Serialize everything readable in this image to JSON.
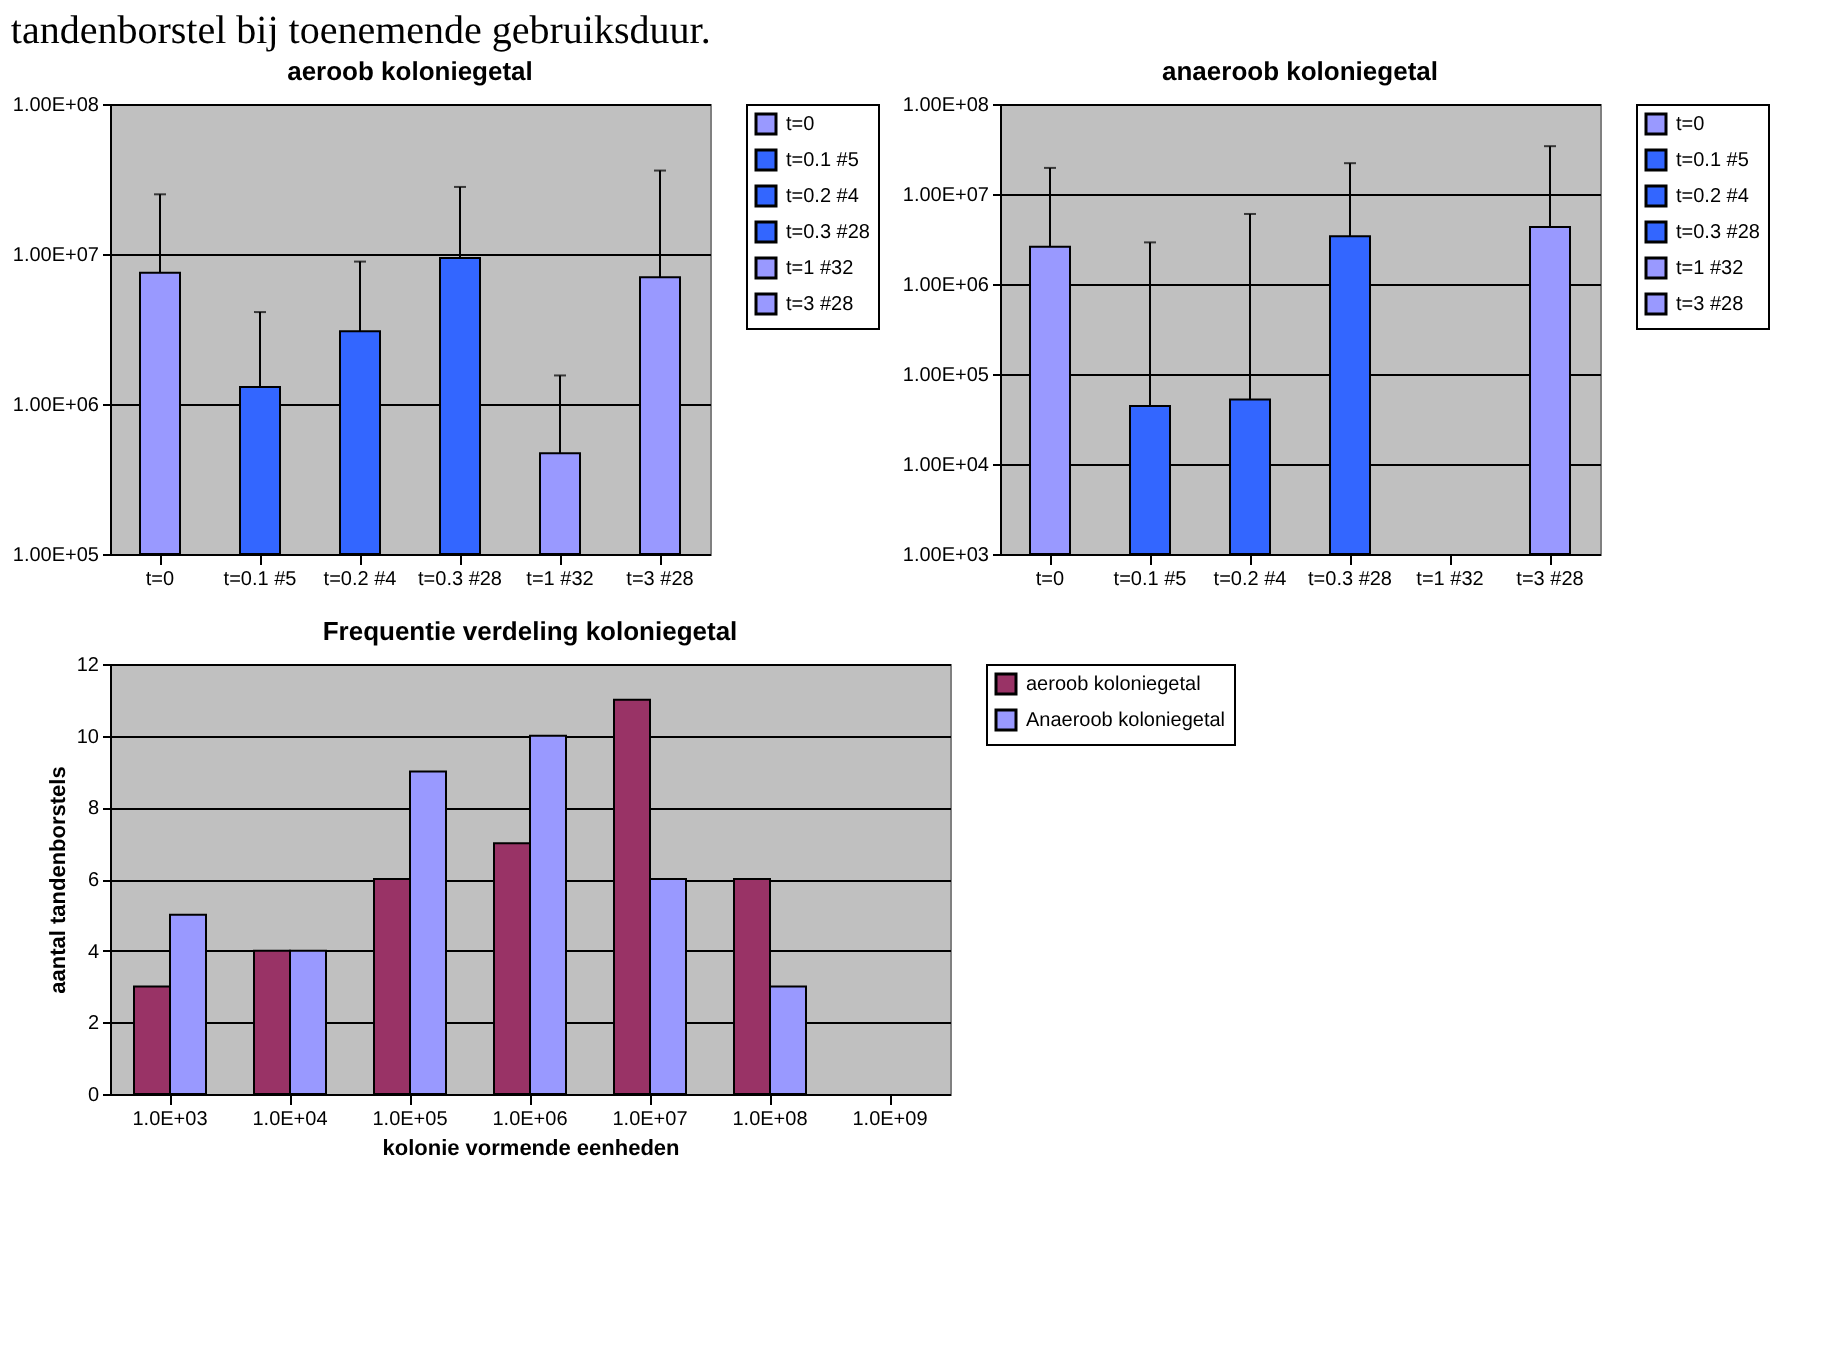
{
  "chart_data": [
    {
      "type": "bar",
      "title": "aeroob koloniegetal",
      "annotations": [
        "tandenborstel bij toenemende gebruiksduur."
      ],
      "categories": [
        "t=0",
        "t=0.1 #5",
        "t=0.2 #4",
        "t=0.3 #28",
        "t=1 #32",
        "t=3 #28"
      ],
      "series": [
        {
          "name": "t=0",
          "color": "#9999ff",
          "values": [
            7500000,
            null,
            null,
            null,
            null,
            null
          ],
          "errors": [
            [
              7500000,
              25000000
            ],
            null,
            null,
            null,
            null,
            null
          ]
        },
        {
          "name": "t=0.1 #5",
          "color": "#3366ff",
          "values": [
            null,
            1300000,
            null,
            null,
            null,
            null
          ],
          "errors": [
            null,
            [
              1300000,
              4100000
            ],
            null,
            null,
            null,
            null
          ]
        },
        {
          "name": "t=0.2 #4",
          "color": "#3366ff",
          "values": [
            null,
            null,
            3050000,
            null,
            null,
            null
          ],
          "errors": [
            null,
            null,
            [
              3050000,
              8900000
            ],
            null,
            null,
            null
          ]
        },
        {
          "name": "t=0.3 #28",
          "color": "#3366ff",
          "values": [
            null,
            null,
            null,
            9400000,
            null,
            null
          ],
          "errors": [
            null,
            null,
            null,
            [
              9400000,
              28000000
            ],
            null,
            null
          ]
        },
        {
          "name": "t=1 #32",
          "color": "#9999ff",
          "values": [
            null,
            null,
            null,
            null,
            470000,
            null
          ],
          "errors": [
            null,
            null,
            null,
            null,
            [
              470000,
              1550000
            ],
            null
          ]
        },
        {
          "name": "t=3 #28",
          "color": "#9999ff",
          "values": [
            null,
            null,
            null,
            null,
            null,
            7000000
          ],
          "errors": [
            null,
            null,
            null,
            null,
            null,
            [
              7000000,
              36000000
            ]
          ]
        }
      ],
      "log": true,
      "ylim": [
        100000,
        100000000
      ],
      "yticks": [
        {
          "value": 100000,
          "label": "1.00E+05"
        },
        {
          "value": 1000000,
          "label": "1.00E+06"
        },
        {
          "value": 10000000,
          "label": "1.00E+07"
        },
        {
          "value": 100000000,
          "label": "1.00E+08"
        }
      ],
      "grid": "y",
      "legend": "right"
    },
    {
      "type": "bar",
      "title": "anaeroob koloniegetal",
      "categories": [
        "t=0",
        "t=0.1 #5",
        "t=0.2 #4",
        "t=0.3 #28",
        "t=1 #32",
        "t=3 #28"
      ],
      "series": [
        {
          "name": "t=0",
          "color": "#9999ff",
          "values": [
            2600000,
            null,
            null,
            null,
            null,
            null
          ],
          "errors": [
            [
              2600000,
              19500000
            ],
            null,
            null,
            null,
            null,
            null
          ]
        },
        {
          "name": "t=0.1 #5",
          "color": "#3366ff",
          "values": [
            null,
            44000,
            null,
            null,
            null,
            null
          ],
          "errors": [
            null,
            [
              44000,
              2900000
            ],
            null,
            null,
            null,
            null
          ]
        },
        {
          "name": "t=0.2 #4",
          "color": "#3366ff",
          "values": [
            null,
            null,
            52000,
            null,
            null,
            null
          ],
          "errors": [
            null,
            null,
            [
              52000,
              6000000
            ],
            null,
            null,
            null
          ]
        },
        {
          "name": "t=0.3 #28",
          "color": "#3366ff",
          "values": [
            null,
            null,
            null,
            3400000,
            null,
            null
          ],
          "errors": [
            null,
            null,
            null,
            [
              3400000,
              22000000
            ],
            null,
            null
          ]
        },
        {
          "name": "t=1 #32",
          "color": "#9999ff",
          "values": [
            null,
            null,
            null,
            null,
            null,
            null
          ]
        },
        {
          "name": "t=3 #28",
          "color": "#9999ff",
          "values": [
            null,
            null,
            null,
            null,
            null,
            4300000
          ],
          "errors": [
            null,
            null,
            null,
            null,
            null,
            [
              4300000,
              34000000
            ]
          ]
        }
      ],
      "log": true,
      "ylim": [
        1000,
        100000000
      ],
      "yticks": [
        {
          "value": 1000,
          "label": "1.00E+03"
        },
        {
          "value": 10000,
          "label": "1.00E+04"
        },
        {
          "value": 100000,
          "label": "1.00E+05"
        },
        {
          "value": 1000000,
          "label": "1.00E+06"
        },
        {
          "value": 10000000,
          "label": "1.00E+07"
        },
        {
          "value": 100000000,
          "label": "1.00E+08"
        }
      ],
      "grid": "y",
      "legend": "right"
    },
    {
      "type": "bar",
      "title": "Frequentie verdeling koloniegetal",
      "xlabel": "kolonie vormende eenheden",
      "ylabel": "aantal tandenborstels",
      "categories": [
        "1.0E+03",
        "1.0E+04",
        "1.0E+05",
        "1.0E+06",
        "1.0E+07",
        "1.0E+08",
        "1.0E+09"
      ],
      "series": [
        {
          "name": "aeroob koloniegetal",
          "color": "#993366",
          "values": [
            3,
            4,
            6,
            7,
            11,
            6,
            null
          ]
        },
        {
          "name": "Anaeroob koloniegetal",
          "color": "#9999ff",
          "values": [
            5,
            4,
            9,
            10,
            6,
            3,
            null
          ]
        }
      ],
      "ylim": [
        0,
        12
      ],
      "yticks": [
        0,
        2,
        4,
        6,
        8,
        10,
        12
      ],
      "grid": "y",
      "legend": "right"
    }
  ]
}
